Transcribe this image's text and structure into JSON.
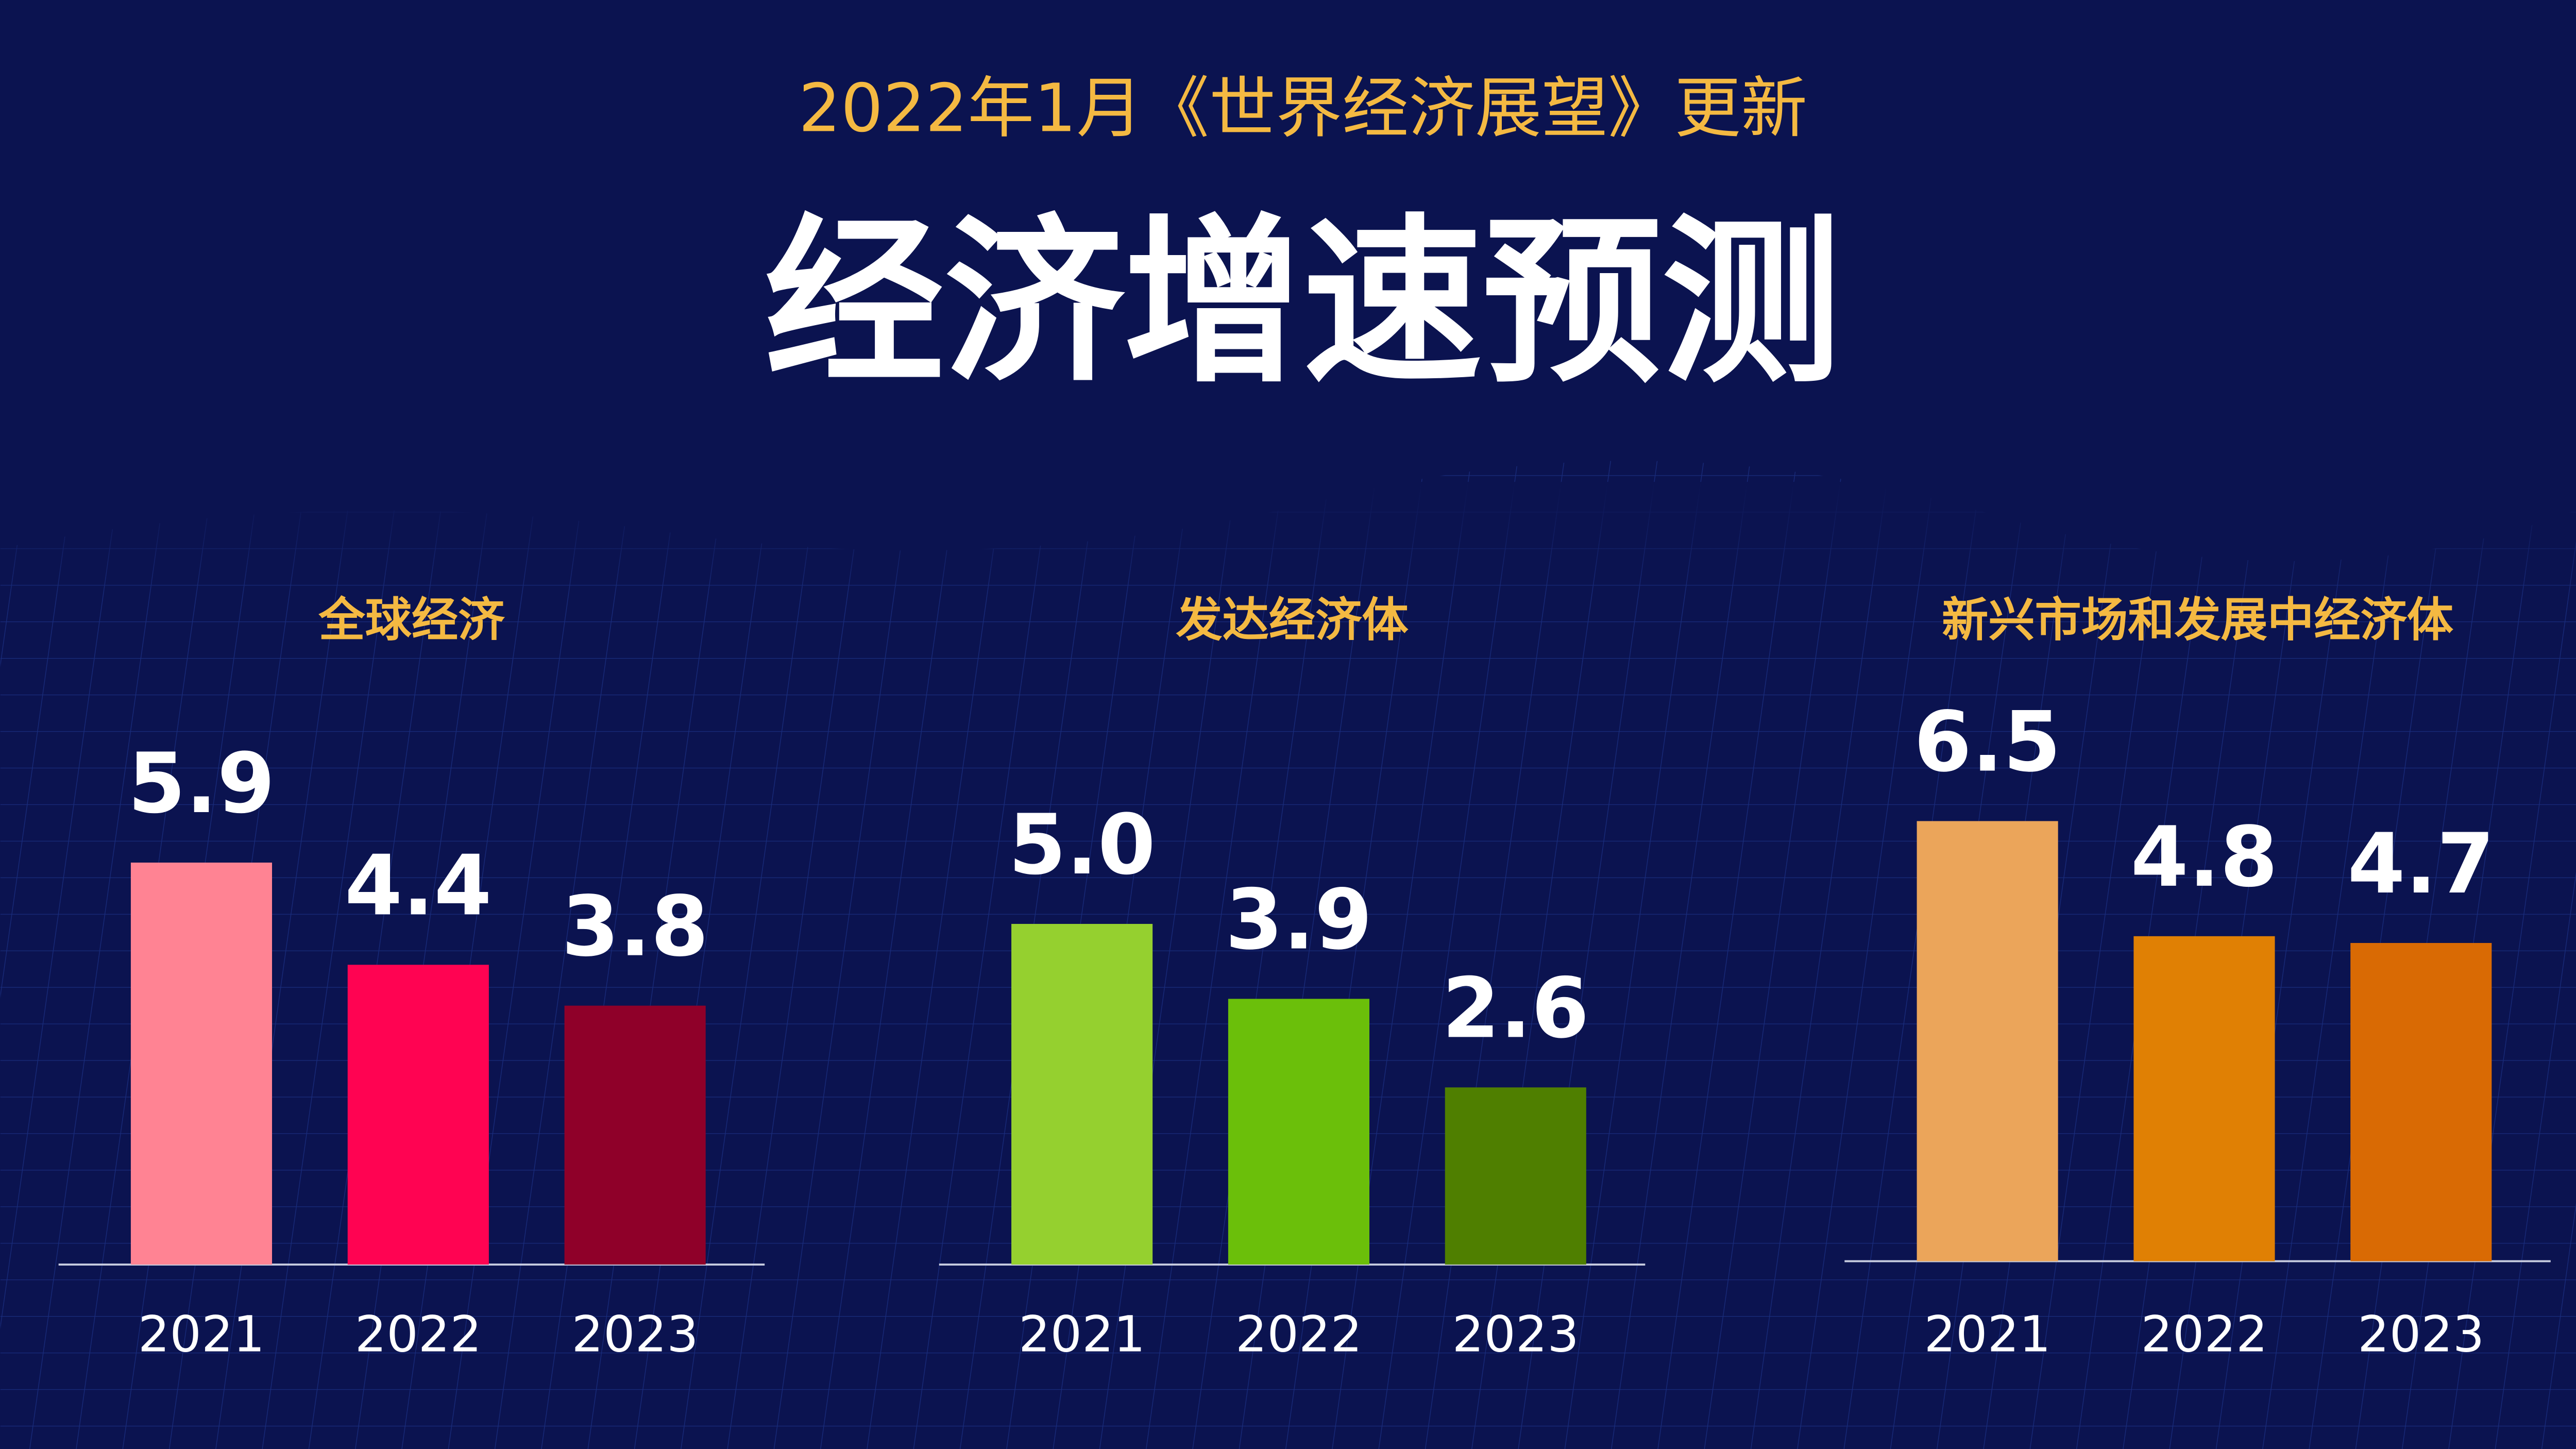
{
  "header": {
    "subtitle": "2022年1月《世界经济展望》更新",
    "title": "经济增速预测"
  },
  "chart_data": [
    {
      "type": "bar",
      "title": "全球经济",
      "categories": [
        "2021",
        "2022",
        "2023"
      ],
      "values": [
        5.9,
        4.4,
        3.8
      ],
      "colors": [
        "#ff8393",
        "#ff0352",
        "#8f0029"
      ],
      "ylim": [
        0,
        8
      ]
    },
    {
      "type": "bar",
      "title": "发达经济体",
      "categories": [
        "2021",
        "2022",
        "2023"
      ],
      "values": [
        5.0,
        3.9,
        2.6
      ],
      "value_labels": [
        "5.0",
        "3.9",
        "2.6"
      ],
      "colors": [
        "#95d02f",
        "#6bbf0a",
        "#4f7f00"
      ],
      "ylim": [
        0,
        8
      ]
    },
    {
      "type": "bar",
      "title": "新兴市场和发展中经济体",
      "categories": [
        "2021",
        "2022",
        "2023"
      ],
      "values": [
        6.5,
        4.8,
        4.7
      ],
      "colors": [
        "#eba55a",
        "#e08004",
        "#d96a04"
      ],
      "ylim": [
        0,
        8
      ]
    }
  ]
}
